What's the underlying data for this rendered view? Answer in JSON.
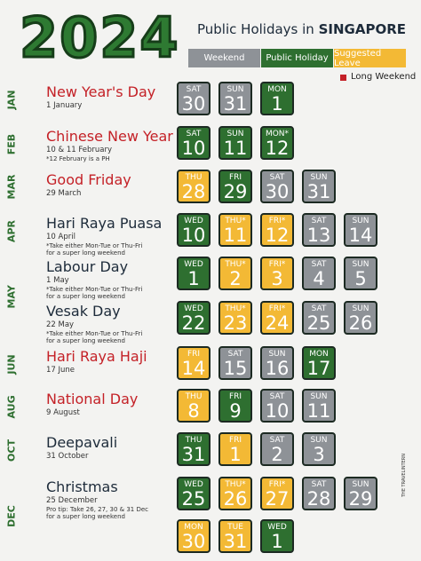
{
  "header": {
    "title": "2024",
    "subtitle": "Public Holidays in",
    "country": "SINGAPORE"
  },
  "legend": {
    "types": [
      {
        "key": "weekend",
        "label": "Weekend",
        "color": "#8e9297"
      },
      {
        "key": "holiday",
        "label": "Public Holiday",
        "color": "#2e6f30"
      },
      {
        "key": "leave",
        "label": "Suggested Leave",
        "color": "#f3b935"
      }
    ],
    "long_weekend": {
      "label": "Long Weekend",
      "color": "#c42127"
    }
  },
  "months": [
    {
      "label": "JAN",
      "holidays": [
        {
          "name": "New Year's Day",
          "long_weekend": true,
          "date": "1 January",
          "notes": [],
          "days": [
            {
              "day": "SAT",
              "date": 30,
              "type": "weekend"
            },
            {
              "day": "SUN",
              "date": 31,
              "type": "weekend"
            },
            {
              "day": "MON",
              "date": 1,
              "type": "holiday"
            }
          ]
        }
      ]
    },
    {
      "label": "FEB",
      "holidays": [
        {
          "name": "Chinese New Year",
          "long_weekend": true,
          "date": "10 & 11 February",
          "notes": [
            "*12 February is a PH"
          ],
          "days": [
            {
              "day": "SAT",
              "date": 10,
              "type": "holiday"
            },
            {
              "day": "SUN",
              "date": 11,
              "type": "holiday"
            },
            {
              "day": "MON*",
              "date": 12,
              "type": "holiday"
            }
          ]
        }
      ]
    },
    {
      "label": "MAR",
      "holidays": [
        {
          "name": "Good Friday",
          "long_weekend": true,
          "date": "29 March",
          "notes": [],
          "days": [
            {
              "day": "THU",
              "date": 28,
              "type": "leave"
            },
            {
              "day": "FRI",
              "date": 29,
              "type": "holiday"
            },
            {
              "day": "SAT",
              "date": 30,
              "type": "weekend"
            },
            {
              "day": "SUN",
              "date": 31,
              "type": "weekend"
            }
          ]
        }
      ]
    },
    {
      "label": "APR",
      "holidays": [
        {
          "name": "Hari Raya Puasa",
          "long_weekend": false,
          "date": "10 April",
          "notes": [
            "*Take either Mon-Tue or Thu-Fri",
            "for a super long weekend"
          ],
          "days": [
            {
              "day": "WED",
              "date": 10,
              "type": "holiday"
            },
            {
              "day": "THU*",
              "date": 11,
              "type": "leave"
            },
            {
              "day": "FRI*",
              "date": 12,
              "type": "leave"
            },
            {
              "day": "SAT",
              "date": 13,
              "type": "weekend"
            },
            {
              "day": "SUN",
              "date": 14,
              "type": "weekend"
            }
          ]
        }
      ]
    },
    {
      "label": "MAY",
      "holidays": [
        {
          "name": "Labour Day",
          "long_weekend": false,
          "date": "1 May",
          "notes": [
            "*Take either Mon-Tue or Thu-Fri",
            "for a super long weekend"
          ],
          "days": [
            {
              "day": "WED",
              "date": 1,
              "type": "holiday"
            },
            {
              "day": "THU*",
              "date": 2,
              "type": "leave"
            },
            {
              "day": "FRI*",
              "date": 3,
              "type": "leave"
            },
            {
              "day": "SAT",
              "date": 4,
              "type": "weekend"
            },
            {
              "day": "SUN",
              "date": 5,
              "type": "weekend"
            }
          ]
        },
        {
          "name": "Vesak Day",
          "long_weekend": false,
          "date": "22 May",
          "notes": [
            "*Take either Mon-Tue or Thu-Fri",
            "for a super long weekend"
          ],
          "days": [
            {
              "day": "WED",
              "date": 22,
              "type": "holiday"
            },
            {
              "day": "THU*",
              "date": 23,
              "type": "leave"
            },
            {
              "day": "FRI*",
              "date": 24,
              "type": "leave"
            },
            {
              "day": "SAT",
              "date": 25,
              "type": "weekend"
            },
            {
              "day": "SUN",
              "date": 26,
              "type": "weekend"
            }
          ]
        }
      ]
    },
    {
      "label": "JUN",
      "holidays": [
        {
          "name": "Hari Raya Haji",
          "long_weekend": true,
          "date": "17 June",
          "notes": [],
          "days": [
            {
              "day": "FRI",
              "date": 14,
              "type": "leave"
            },
            {
              "day": "SAT",
              "date": 15,
              "type": "weekend"
            },
            {
              "day": "SUN",
              "date": 16,
              "type": "weekend"
            },
            {
              "day": "MON",
              "date": 17,
              "type": "holiday"
            }
          ]
        }
      ]
    },
    {
      "label": "AUG",
      "holidays": [
        {
          "name": "National Day",
          "long_weekend": true,
          "date": "9 August",
          "notes": [],
          "days": [
            {
              "day": "THU",
              "date": 8,
              "type": "leave"
            },
            {
              "day": "FRI",
              "date": 9,
              "type": "holiday"
            },
            {
              "day": "SAT",
              "date": 10,
              "type": "weekend"
            },
            {
              "day": "SUN",
              "date": 11,
              "type": "weekend"
            }
          ]
        }
      ]
    },
    {
      "label": "OCT",
      "holidays": [
        {
          "name": "Deepavali",
          "long_weekend": false,
          "date": "31 October",
          "notes": [],
          "days": [
            {
              "day": "THU",
              "date": 31,
              "type": "holiday"
            },
            {
              "day": "FRI",
              "date": 1,
              "type": "leave"
            },
            {
              "day": "SAT",
              "date": 2,
              "type": "weekend"
            },
            {
              "day": "SUN",
              "date": 3,
              "type": "weekend"
            }
          ]
        }
      ]
    },
    {
      "label": "DEC",
      "holidays": [
        {
          "name": "Christmas",
          "long_weekend": false,
          "date": "25 December",
          "notes": [
            "Pro tip: Take 26, 27, 30 & 31 Dec",
            "for a super long weekend"
          ],
          "days": [
            {
              "day": "WED",
              "date": 25,
              "type": "holiday"
            },
            {
              "day": "THU*",
              "date": 26,
              "type": "leave"
            },
            {
              "day": "FRI*",
              "date": 27,
              "type": "leave"
            },
            {
              "day": "SAT",
              "date": 28,
              "type": "weekend"
            },
            {
              "day": "SUN",
              "date": 29,
              "type": "weekend"
            },
            {
              "day": "MON",
              "date": 30,
              "type": "leave"
            },
            {
              "day": "TUE",
              "date": 31,
              "type": "leave"
            },
            {
              "day": "WED",
              "date": 1,
              "type": "holiday"
            }
          ]
        }
      ]
    }
  ],
  "watermark": "THE TRAVELINTERN"
}
